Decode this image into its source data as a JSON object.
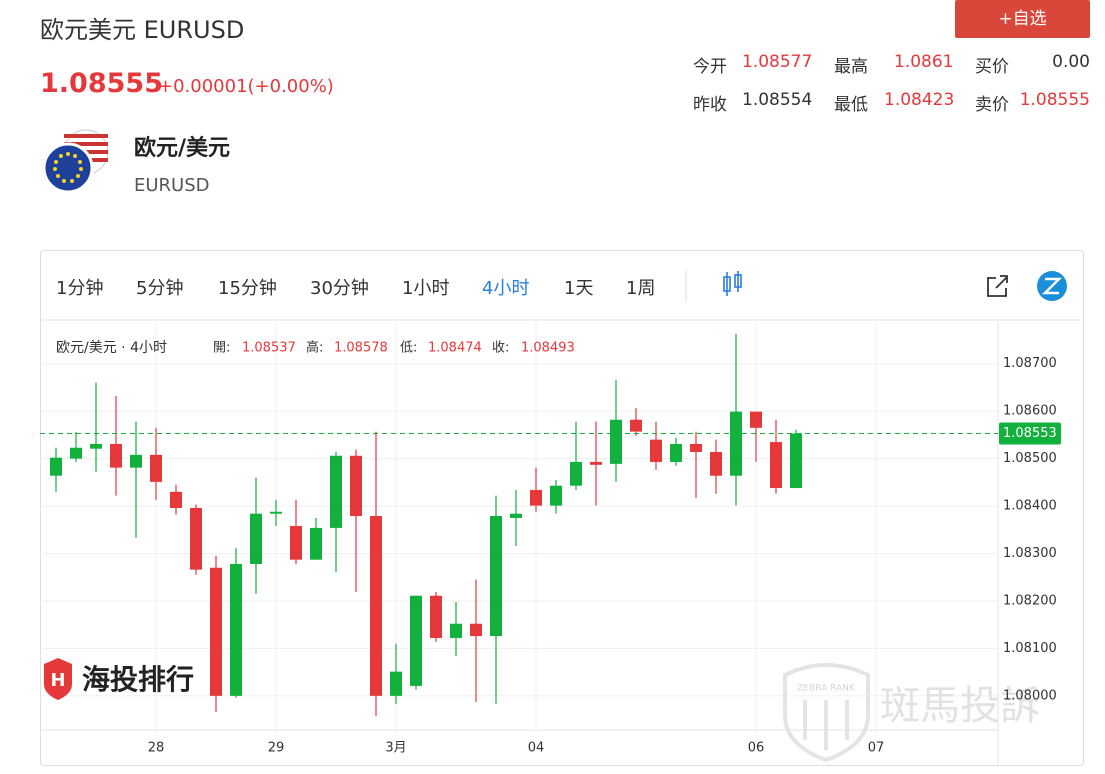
{
  "header": {
    "title": "欧元美元 EURUSD",
    "price": "1.08555",
    "change": "+0.00001(+0.00%)",
    "button": "+自选"
  },
  "quote": {
    "items": [
      {
        "label": "今开",
        "value": "1.08577"
      },
      {
        "label": "最高",
        "value": "1.0861"
      },
      {
        "label": "买价",
        "value": "0.00"
      },
      {
        "label": "昨收",
        "value": "1.08554"
      },
      {
        "label": "最低",
        "value": "1.08423"
      },
      {
        "label": "卖价",
        "value": "1.08555"
      }
    ]
  },
  "instrument": {
    "name": "欧元/美元",
    "code": "EURUSD"
  },
  "toolbar": {
    "intervals": [
      "1分钟",
      "5分钟",
      "15分钟",
      "30分钟",
      "1小时",
      "4小时",
      "1天",
      "1周"
    ],
    "active": 5
  },
  "watermarks": {
    "left": "海投排行",
    "right": "斑馬投訴",
    "badge": "ZEBRA RANK"
  },
  "chart_data": {
    "type": "candlestick",
    "title": "欧元/美元 · 4小时",
    "ohlc_legend": [
      {
        "label": "開:",
        "value": "1.08537"
      },
      {
        "label": "高:",
        "value": "1.08578"
      },
      {
        "label": "低:",
        "value": "1.08474"
      },
      {
        "label": "收:",
        "value": "1.08493"
      }
    ],
    "x": [
      0,
      1,
      2,
      3,
      4,
      5,
      6,
      7,
      8,
      9,
      10,
      11,
      12,
      13,
      14,
      15,
      16,
      17,
      18,
      19,
      20,
      21,
      22,
      23,
      24,
      25,
      26,
      27,
      28,
      29,
      30,
      31,
      32,
      33,
      34,
      35,
      36,
      37
    ],
    "open": [
      1.08464,
      1.085,
      1.08521,
      1.08531,
      1.08481,
      1.08508,
      1.0843,
      1.08396,
      1.0827,
      1.08,
      1.08278,
      1.08384,
      1.08358,
      1.08287,
      1.08354,
      1.08506,
      1.08379,
      1.08,
      1.08021,
      1.08211,
      1.08122,
      1.08152,
      1.08126,
      1.08375,
      1.08434,
      1.08401,
      1.08443,
      1.08493,
      1.08489,
      1.08582,
      1.0854,
      1.08493,
      1.08531,
      1.08514,
      1.08464,
      1.08599,
      1.08535,
      1.08438
    ],
    "high": [
      1.08523,
      1.08556,
      1.0866,
      1.08632,
      1.08578,
      1.08565,
      1.08445,
      1.08403,
      1.08295,
      1.08312,
      1.0846,
      1.08413,
      1.08413,
      1.08375,
      1.08514,
      1.08519,
      1.08557,
      1.0811,
      1.08211,
      1.08219,
      1.08198,
      1.08245,
      1.08422,
      1.08434,
      1.08481,
      1.08455,
      1.08578,
      1.08578,
      1.08666,
      1.08607,
      1.08578,
      1.08544,
      1.08557,
      1.0854,
      1.08763,
      1.08599,
      1.08582,
      1.08561
    ],
    "low": [
      1.0843,
      1.08493,
      1.08472,
      1.08422,
      1.08333,
      1.08413,
      1.08382,
      1.08255,
      1.07966,
      1.07996,
      1.08215,
      1.08358,
      1.08278,
      1.08287,
      1.08261,
      1.08219,
      1.07958,
      1.07983,
      1.08013,
      1.08114,
      1.08084,
      1.07987,
      1.07983,
      1.08316,
      1.08388,
      1.08384,
      1.08434,
      1.08401,
      1.08451,
      1.08548,
      1.08476,
      1.08485,
      1.08417,
      1.08426,
      1.08401,
      1.08493,
      1.08426,
      1.08438
    ],
    "close": [
      1.08502,
      1.08523,
      1.08531,
      1.08481,
      1.08508,
      1.08451,
      1.08396,
      1.08266,
      1.08,
      1.08278,
      1.08384,
      1.08388,
      1.08287,
      1.08354,
      1.08506,
      1.08379,
      1.08,
      1.08051,
      1.08211,
      1.08122,
      1.08152,
      1.08126,
      1.08379,
      1.08384,
      1.08401,
      1.08443,
      1.08493,
      1.08487,
      1.08582,
      1.08557,
      1.08493,
      1.08531,
      1.08514,
      1.08464,
      1.08599,
      1.08565,
      1.08438,
      1.08553
    ],
    "up_color": "#12b03c",
    "down_color": "#e5383b",
    "xlim": [
      -0.8,
      47.1
    ],
    "xticks": [
      {
        "value": 5,
        "label": "28"
      },
      {
        "value": 11,
        "label": "29"
      },
      {
        "value": 17,
        "label": "3月"
      },
      {
        "value": 24,
        "label": "04"
      },
      {
        "value": 35,
        "label": "06"
      },
      {
        "value": 41,
        "label": "07"
      }
    ],
    "ylim": [
      1.07928,
      1.08788
    ],
    "yticks": [
      {
        "value": 1.08,
        "label": "1.08000"
      },
      {
        "value": 1.081,
        "label": "1.08100"
      },
      {
        "value": 1.082,
        "label": "1.08200"
      },
      {
        "value": 1.083,
        "label": "1.08300"
      },
      {
        "value": 1.084,
        "label": "1.08400"
      },
      {
        "value": 1.085,
        "label": "1.08500"
      },
      {
        "value": 1.086,
        "label": "1.08600"
      },
      {
        "value": 1.087,
        "label": "1.08700"
      }
    ],
    "last_price": {
      "value": 1.08553,
      "label": "1.08553"
    },
    "grid": true
  }
}
